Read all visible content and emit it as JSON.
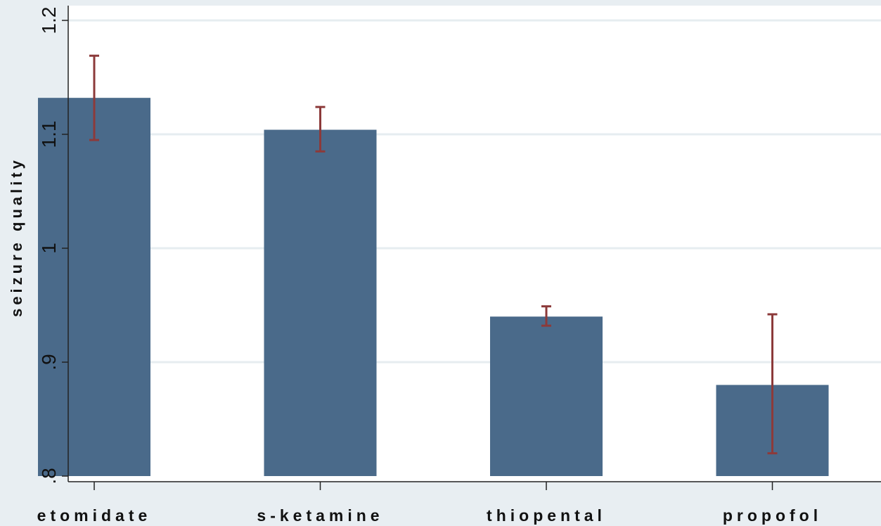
{
  "chart_data": {
    "type": "bar",
    "categories": [
      "etomidate",
      "s-ketamine",
      "thiopental",
      "propofol"
    ],
    "values": [
      1.132,
      1.104,
      0.94,
      0.88
    ],
    "error_bars": [
      {
        "low": 1.095,
        "high": 1.169
      },
      {
        "low": 1.085,
        "high": 1.124
      },
      {
        "low": 0.932,
        "high": 0.949
      },
      {
        "low": 0.82,
        "high": 0.942
      }
    ],
    "ylabel": "seizure quality",
    "xlabel": "",
    "ylim": [
      0.8,
      1.2
    ],
    "yticks": [
      0.8,
      0.9,
      1.0,
      1.1,
      1.2
    ],
    "ytick_labels": [
      ".8",
      ".9",
      "1",
      "1.1",
      "1.2"
    ],
    "grid": true,
    "colors": {
      "bar": "#4a6a8a",
      "error_bar": "#8c3a3a",
      "grid": "#e6edf0",
      "outer_background": "#e8eef2",
      "plot_background": "#ffffff"
    }
  }
}
